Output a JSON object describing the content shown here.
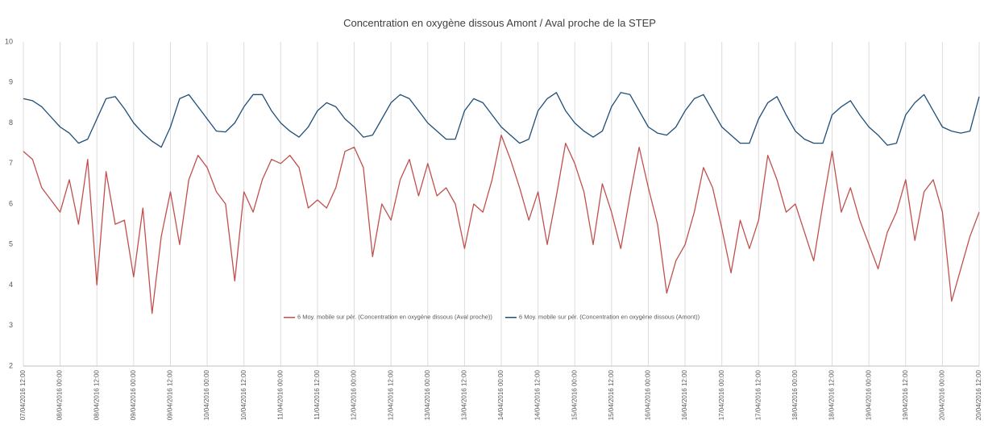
{
  "chart_data": {
    "type": "line",
    "title": "Concentration en oxygène dissous Amont / Aval proche de la STEP",
    "categories": [
      "07/04/2016 12:00",
      null,
      null,
      null,
      "08/04/2016 00:00",
      null,
      null,
      null,
      "08/04/2016 12:00",
      null,
      null,
      null,
      "09/04/2016 00:00",
      null,
      null,
      null,
      "09/04/2016 12:00",
      null,
      null,
      null,
      "10/04/2016 00:00",
      null,
      null,
      null,
      "10/04/2016 12:00",
      null,
      null,
      null,
      "11/04/2016 00:00",
      null,
      null,
      null,
      "11/04/2016 12:00",
      null,
      null,
      null,
      "12/04/2016 00:00",
      null,
      null,
      null,
      "12/04/2016 12:00",
      null,
      null,
      null,
      "13/04/2016 00:00",
      null,
      null,
      null,
      "13/04/2016 12:00",
      null,
      null,
      null,
      "14/04/2016 00:00",
      null,
      null,
      null,
      "14/04/2016 12:00",
      null,
      null,
      null,
      "15/04/2016 00:00",
      null,
      null,
      null,
      "15/04/2016 12:00",
      null,
      null,
      null,
      "16/04/2016 00:00",
      null,
      null,
      null,
      "16/04/2016 12:00",
      null,
      null,
      null,
      "17/04/2016 00:00",
      null,
      null,
      null,
      "17/04/2016 12:00",
      null,
      null,
      null,
      "18/04/2016 00:00",
      null,
      null,
      null,
      "18/04/2016 12:00",
      null,
      null,
      null,
      "19/04/2016 00:00",
      null,
      null,
      null,
      "19/04/2016 12:00",
      null,
      null,
      null,
      "20/04/2016 00:00",
      null,
      null,
      null,
      "20/04/2016 12:00"
    ],
    "series": [
      {
        "name": "6 Moy. mobile sur pér. (Concentration en oxygène dissous (Aval proche))",
        "color": "#c0504d",
        "values": [
          7.3,
          7.1,
          6.4,
          6.1,
          5.8,
          6.6,
          5.5,
          7.1,
          4.0,
          6.8,
          5.5,
          5.6,
          4.2,
          5.9,
          3.3,
          5.2,
          6.3,
          5.0,
          6.6,
          7.2,
          6.9,
          6.3,
          6.0,
          4.1,
          6.3,
          5.8,
          6.6,
          7.1,
          7.0,
          7.2,
          6.9,
          5.9,
          6.1,
          5.9,
          6.4,
          7.3,
          7.4,
          6.9,
          4.7,
          6.0,
          5.6,
          6.6,
          7.1,
          6.2,
          7.0,
          6.2,
          6.4,
          6.0,
          4.9,
          6.0,
          5.8,
          6.6,
          7.7,
          7.1,
          6.4,
          5.6,
          6.3,
          5.0,
          6.2,
          7.5,
          7.0,
          6.3,
          5.0,
          6.5,
          5.8,
          4.9,
          6.2,
          7.4,
          6.4,
          5.5,
          3.8,
          4.6,
          5.0,
          5.8,
          6.9,
          6.4,
          5.4,
          4.3,
          5.6,
          4.9,
          5.6,
          7.2,
          6.6,
          5.8,
          6.0,
          5.3,
          4.6,
          6.0,
          7.3,
          5.8,
          6.4,
          5.6,
          5.0,
          4.4,
          5.3,
          5.8,
          6.6,
          5.1,
          6.3,
          6.6,
          5.8,
          3.6,
          4.4,
          5.2,
          5.8
        ]
      },
      {
        "name": "6 Moy. mobile sur pér. (Concentration en oxygène dissous (Amont))",
        "color": "#1f4e79",
        "values": [
          8.6,
          8.55,
          8.4,
          8.15,
          7.9,
          7.75,
          7.5,
          7.6,
          8.1,
          8.6,
          8.65,
          8.35,
          8.0,
          7.75,
          7.55,
          7.4,
          7.9,
          8.6,
          8.7,
          8.4,
          8.1,
          7.8,
          7.78,
          8.0,
          8.4,
          8.7,
          8.7,
          8.3,
          8.0,
          7.8,
          7.65,
          7.9,
          8.3,
          8.5,
          8.4,
          8.1,
          7.9,
          7.65,
          7.7,
          8.1,
          8.5,
          8.7,
          8.6,
          8.3,
          8.0,
          7.8,
          7.6,
          7.6,
          8.3,
          8.6,
          8.5,
          8.2,
          7.9,
          7.7,
          7.5,
          7.6,
          8.3,
          8.6,
          8.75,
          8.3,
          8.0,
          7.8,
          7.65,
          7.8,
          8.4,
          8.75,
          8.7,
          8.3,
          7.9,
          7.75,
          7.7,
          7.9,
          8.3,
          8.6,
          8.7,
          8.3,
          7.9,
          7.7,
          7.5,
          7.5,
          8.1,
          8.5,
          8.65,
          8.2,
          7.8,
          7.6,
          7.5,
          7.5,
          8.2,
          8.4,
          8.55,
          8.2,
          7.9,
          7.7,
          7.45,
          7.5,
          8.2,
          8.5,
          8.7,
          8.3,
          7.9,
          7.8,
          7.75,
          7.8,
          8.65
        ]
      }
    ],
    "ylim": [
      2,
      10
    ],
    "yticks": [
      2,
      3,
      4,
      5,
      6,
      7,
      8,
      9,
      10
    ],
    "grid": "x",
    "legend": "center"
  }
}
